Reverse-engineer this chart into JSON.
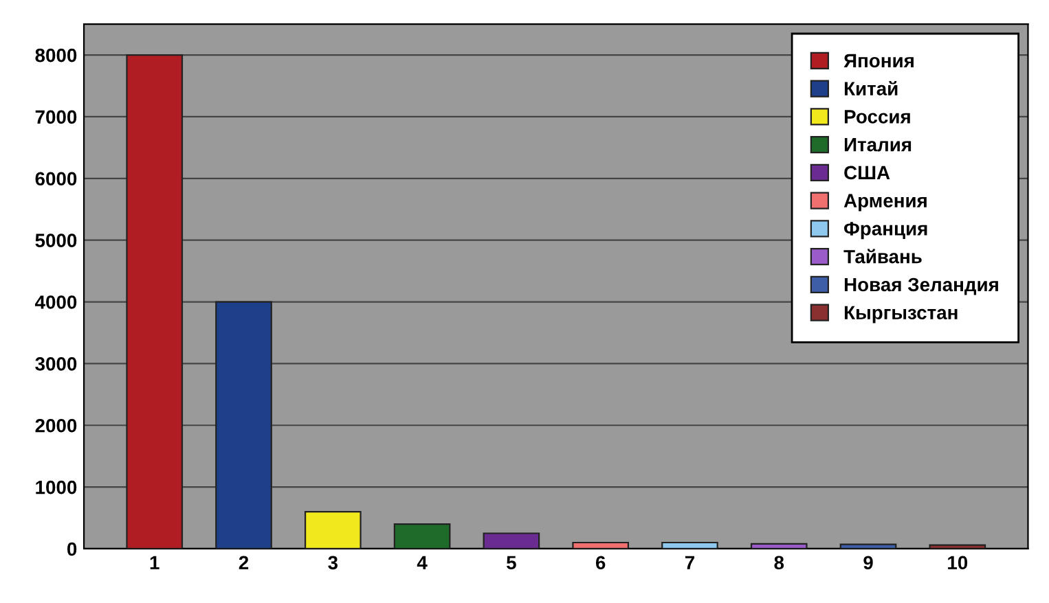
{
  "chart_data": {
    "type": "bar",
    "categories": [
      "1",
      "2",
      "3",
      "4",
      "5",
      "6",
      "7",
      "8",
      "9",
      "10"
    ],
    "series": [
      {
        "name": "Япония",
        "color": "#b01e23",
        "values": [
          8000,
          null,
          null,
          null,
          null,
          null,
          null,
          null,
          null,
          null
        ]
      },
      {
        "name": "Китай",
        "color": "#1e3f8a",
        "values": [
          null,
          4000,
          null,
          null,
          null,
          null,
          null,
          null,
          null,
          null
        ]
      },
      {
        "name": "Россия",
        "color": "#f2e81e",
        "values": [
          null,
          null,
          600,
          null,
          null,
          null,
          null,
          null,
          null,
          null
        ]
      },
      {
        "name": "Италия",
        "color": "#1e6b2a",
        "values": [
          null,
          null,
          null,
          400,
          null,
          null,
          null,
          null,
          null,
          null
        ]
      },
      {
        "name": "США",
        "color": "#6b2c91",
        "values": [
          null,
          null,
          null,
          null,
          250,
          null,
          null,
          null,
          null,
          null
        ]
      },
      {
        "name": "Армения",
        "color": "#f07070",
        "values": [
          null,
          null,
          null,
          null,
          null,
          100,
          null,
          null,
          null,
          null
        ]
      },
      {
        "name": "Франция",
        "color": "#8ec8ef",
        "values": [
          null,
          null,
          null,
          null,
          null,
          null,
          100,
          null,
          null,
          null
        ]
      },
      {
        "name": "Тайвань",
        "color": "#9a5cc8",
        "values": [
          null,
          null,
          null,
          null,
          null,
          null,
          null,
          80,
          null,
          null
        ]
      },
      {
        "name": "Новая Зеландия",
        "color": "#3e5fa8",
        "values": [
          null,
          null,
          null,
          null,
          null,
          null,
          null,
          null,
          70,
          null
        ]
      },
      {
        "name": "Кыргызстан",
        "color": "#8b3030",
        "values": [
          null,
          null,
          null,
          null,
          null,
          null,
          null,
          null,
          null,
          60
        ]
      }
    ],
    "ylim": [
      0,
      8500
    ],
    "yticks": [
      0,
      1000,
      2000,
      3000,
      4000,
      5000,
      6000,
      7000,
      8000
    ],
    "grid": "y",
    "legend": "top right"
  }
}
